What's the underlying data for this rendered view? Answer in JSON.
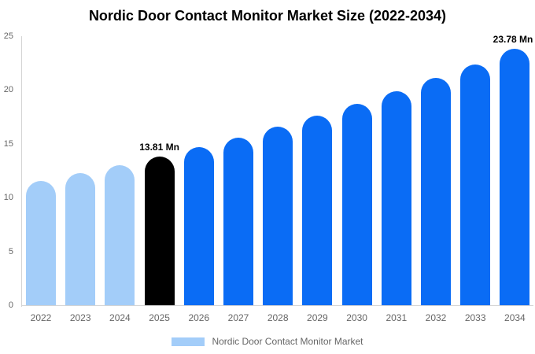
{
  "title": "Nordic Door Contact Monitor Market Size (2022-2034)",
  "legend": {
    "label": "Nordic Door Contact Monitor Market"
  },
  "colors": {
    "historical": "#a3cdf9",
    "base_year": "#000000",
    "forecast": "#0a6cf5",
    "axis_line": "#d4d4d4",
    "tick_text": "#666666",
    "label_text": "#000000"
  },
  "chart_data": {
    "type": "bar",
    "title": "Nordic Door Contact Monitor Market Size (2022-2034)",
    "unit": "Mn",
    "categories": [
      "2022",
      "2023",
      "2024",
      "2025",
      "2026",
      "2027",
      "2028",
      "2029",
      "2030",
      "2031",
      "2032",
      "2033",
      "2034"
    ],
    "values": [
      11.53,
      12.24,
      13.0,
      13.81,
      14.67,
      15.58,
      16.55,
      17.58,
      18.67,
      19.83,
      21.06,
      22.37,
      23.78
    ],
    "bar_roles": [
      "historical",
      "historical",
      "historical",
      "base_year",
      "forecast",
      "forecast",
      "forecast",
      "forecast",
      "forecast",
      "forecast",
      "forecast",
      "forecast",
      "forecast"
    ],
    "ylim": [
      0,
      25
    ],
    "yticks": [
      0,
      5,
      10,
      15,
      20,
      25
    ],
    "grid": false,
    "legend_position": "bottom",
    "data_labels": [
      {
        "category": "2025",
        "text": "13.81 Mn"
      },
      {
        "category": "2034",
        "text": "23.78 Mn"
      }
    ]
  }
}
